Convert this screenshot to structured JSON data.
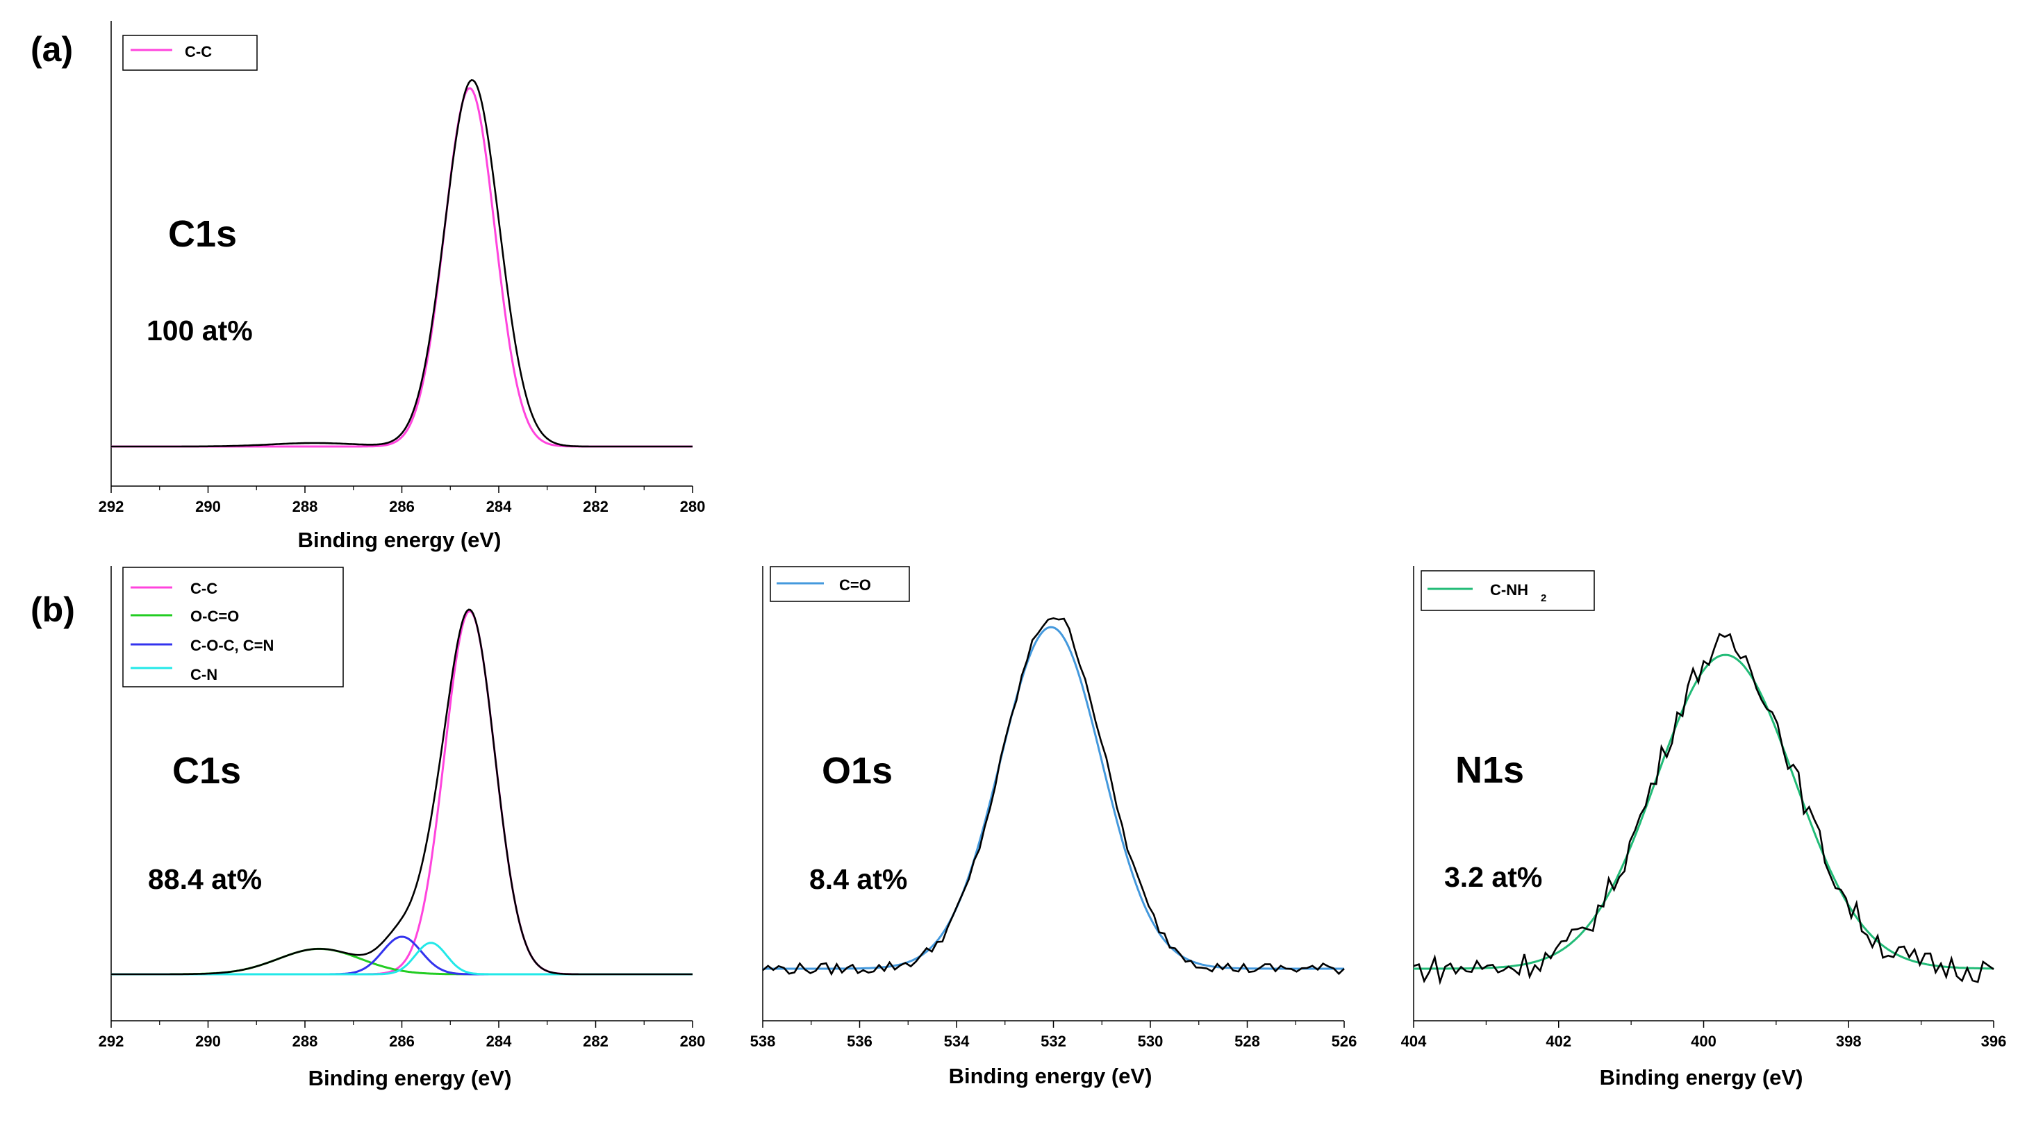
{
  "chart_data": [
    {
      "type": "line",
      "panel_label": "(a)",
      "region": "C1s",
      "atomic_percent": "100 at%",
      "xlabel": "Binding energy (eV)",
      "ylabel": "",
      "xlim": [
        292,
        280
      ],
      "x_reversed": true,
      "xticks": [
        292,
        290,
        288,
        286,
        284,
        282,
        280
      ],
      "baseline": 0.16,
      "peak_height": 3.16,
      "raw_data": {
        "name": "raw",
        "color": "#000000",
        "center": 284.55,
        "sigma": 0.56,
        "amplitude": 3.17
      },
      "series": [
        {
          "name": "C-C",
          "color": "#ff44dd",
          "center": 284.6,
          "sigma": 0.52,
          "amplitude": 3.1
        }
      ],
      "legend": [
        {
          "label": "C-C",
          "color": "#ff44dd"
        }
      ]
    },
    {
      "type": "line",
      "panel_label": "(b)",
      "region": "C1s",
      "atomic_percent": "88.4 at%",
      "xlabel": "Binding energy (eV)",
      "ylabel": "",
      "xlim": [
        292,
        280
      ],
      "x_reversed": true,
      "xticks": [
        292,
        290,
        288,
        286,
        284,
        282,
        280
      ],
      "baseline": 0.0,
      "peak_height": 3.0,
      "raw_data": {
        "name": "envelope",
        "color": "#000000",
        "sum_of_components": true
      },
      "series": [
        {
          "name": "C-C",
          "color": "#ff44dd",
          "center": 284.6,
          "sigma": 0.52,
          "amplitude": 3.0
        },
        {
          "name": "O-C=O",
          "color": "#22cc22",
          "center": 287.7,
          "sigma": 0.85,
          "amplitude": 0.21
        },
        {
          "name": "C-O-C, C=N",
          "color": "#3333ee",
          "center": 286.0,
          "sigma": 0.4,
          "amplitude": 0.31
        },
        {
          "name": "C-N",
          "color": "#22e8e8",
          "center": 285.4,
          "sigma": 0.32,
          "amplitude": 0.26
        }
      ],
      "legend": [
        {
          "label": "C-C",
          "color": "#ff44dd"
        },
        {
          "label": "O-C=O",
          "color": "#22cc22"
        },
        {
          "label": "C-O-C, C=N",
          "color": "#3333ee"
        },
        {
          "label": "C-N",
          "color": "#22e8e8"
        }
      ]
    },
    {
      "type": "line",
      "panel_label": "",
      "region": "O1s",
      "atomic_percent": "8.4 at%",
      "xlabel": "Binding energy (eV)",
      "ylabel": "",
      "xlim": [
        538,
        526
      ],
      "x_reversed": true,
      "xticks": [
        538,
        536,
        534,
        532,
        530,
        528,
        526
      ],
      "baseline": 0.12,
      "peak_height": 3.12,
      "raw_data": {
        "name": "raw",
        "color": "#000000",
        "center": 532.0,
        "sigma": 1.05,
        "amplitude": 3.08,
        "noise": 0.05
      },
      "series": [
        {
          "name": "C=O",
          "color": "#4499dd",
          "center": 532.05,
          "sigma": 1.05,
          "amplitude": 2.98
        }
      ],
      "legend": [
        {
          "label": "C=O",
          "color": "#4499dd"
        }
      ]
    },
    {
      "type": "line",
      "panel_label": "",
      "region": "N1s",
      "atomic_percent": "3.2 at%",
      "xlabel": "Binding energy (eV)",
      "ylabel": "",
      "xlim": [
        404,
        396
      ],
      "x_reversed": true,
      "xticks": [
        404,
        402,
        400,
        398,
        396
      ],
      "baseline": 0.3,
      "peak_height": 3.1,
      "raw_data": {
        "name": "raw",
        "color": "#000000",
        "center": 399.7,
        "sigma": 0.95,
        "amplitude": 2.8,
        "noise": 0.12
      },
      "series": [
        {
          "name": "C-NH",
          "subscript": "2",
          "color": "#22bb77",
          "center": 399.7,
          "sigma": 0.95,
          "amplitude": 2.72
        }
      ],
      "legend": [
        {
          "label": "C-NH",
          "subscript": "2",
          "color": "#22bb77"
        }
      ]
    }
  ]
}
